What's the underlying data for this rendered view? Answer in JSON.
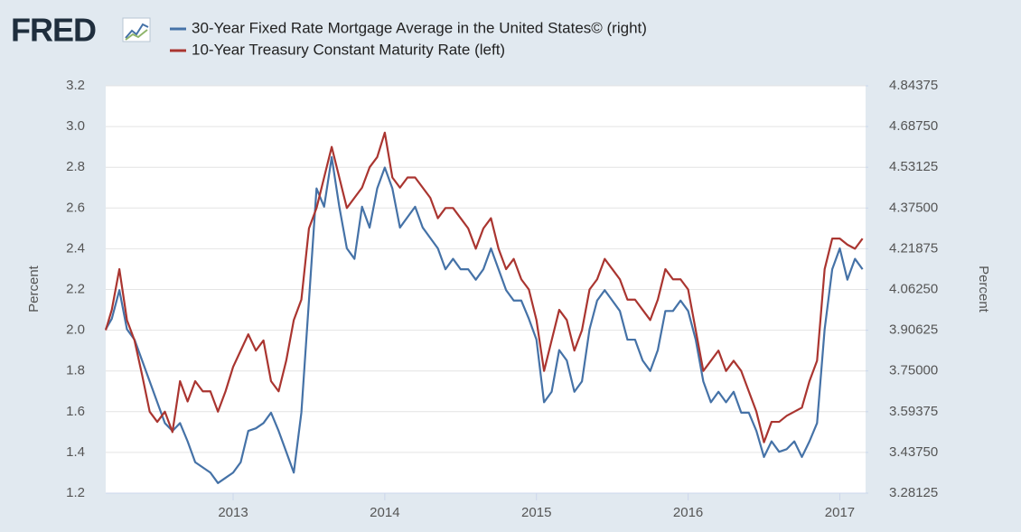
{
  "chart_data": {
    "type": "line",
    "logo": "FRED",
    "yaxis_label": "Percent",
    "y2axis_label": "Percent",
    "grid": true,
    "x": [
      2012.16,
      2012.2,
      2012.25,
      2012.3,
      2012.35,
      2012.4,
      2012.45,
      2012.5,
      2012.55,
      2012.6,
      2012.65,
      2012.7,
      2012.75,
      2012.8,
      2012.85,
      2012.9,
      2012.95,
      2013.0,
      2013.05,
      2013.1,
      2013.15,
      2013.2,
      2013.25,
      2013.3,
      2013.35,
      2013.4,
      2013.45,
      2013.5,
      2013.55,
      2013.6,
      2013.65,
      2013.7,
      2013.75,
      2013.8,
      2013.85,
      2013.9,
      2013.95,
      2014.0,
      2014.05,
      2014.1,
      2014.15,
      2014.2,
      2014.25,
      2014.3,
      2014.35,
      2014.4,
      2014.45,
      2014.5,
      2014.55,
      2014.6,
      2014.65,
      2014.7,
      2014.75,
      2014.8,
      2014.85,
      2014.9,
      2014.95,
      2015.0,
      2015.05,
      2015.1,
      2015.15,
      2015.2,
      2015.25,
      2015.3,
      2015.35,
      2015.4,
      2015.45,
      2015.5,
      2015.55,
      2015.6,
      2015.65,
      2015.7,
      2015.75,
      2015.8,
      2015.85,
      2015.9,
      2015.95,
      2016.0,
      2016.05,
      2016.1,
      2016.15,
      2016.2,
      2016.25,
      2016.3,
      2016.35,
      2016.4,
      2016.45,
      2016.5,
      2016.55,
      2016.6,
      2016.65,
      2016.7,
      2016.75,
      2016.8,
      2016.85,
      2016.9,
      2016.95,
      2017.0,
      2017.05,
      2017.1,
      2017.15
    ],
    "series": [
      {
        "name": "30-Year Fixed Rate Mortgage Average in the United States© (right)",
        "color": "#4572a7",
        "axis": "y2",
        "values": [
          3.91,
          3.95,
          4.06,
          3.91,
          3.87,
          3.79,
          3.71,
          3.63,
          3.55,
          3.52,
          3.55,
          3.48,
          3.4,
          3.38,
          3.36,
          3.32,
          3.34,
          3.36,
          3.4,
          3.52,
          3.53,
          3.55,
          3.59,
          3.52,
          3.44,
          3.36,
          3.59,
          4.02,
          4.45,
          4.38,
          4.57,
          4.38,
          4.22,
          4.18,
          4.38,
          4.3,
          4.45,
          4.53,
          4.45,
          4.3,
          4.34,
          4.38,
          4.3,
          4.26,
          4.22,
          4.14,
          4.18,
          4.14,
          4.14,
          4.1,
          4.14,
          4.22,
          4.14,
          4.06,
          4.02,
          4.02,
          3.95,
          3.87,
          3.63,
          3.67,
          3.83,
          3.79,
          3.67,
          3.71,
          3.91,
          4.02,
          4.06,
          4.02,
          3.98,
          3.87,
          3.87,
          3.79,
          3.75,
          3.83,
          3.98,
          3.98,
          4.02,
          3.98,
          3.87,
          3.71,
          3.63,
          3.67,
          3.63,
          3.67,
          3.59,
          3.59,
          3.52,
          3.42,
          3.48,
          3.44,
          3.45,
          3.48,
          3.42,
          3.48,
          3.55,
          3.91,
          4.14,
          4.22,
          4.1,
          4.18,
          4.14
        ]
      },
      {
        "name": "10-Year Treasury Constant Maturity Rate (left)",
        "color": "#aa3530",
        "axis": "y",
        "values": [
          2.0,
          2.1,
          2.3,
          2.05,
          1.95,
          1.78,
          1.6,
          1.55,
          1.6,
          1.5,
          1.75,
          1.65,
          1.75,
          1.7,
          1.7,
          1.6,
          1.7,
          1.82,
          1.9,
          1.98,
          1.9,
          1.95,
          1.75,
          1.7,
          1.85,
          2.05,
          2.15,
          2.5,
          2.6,
          2.75,
          2.9,
          2.75,
          2.6,
          2.65,
          2.7,
          2.8,
          2.85,
          2.97,
          2.75,
          2.7,
          2.75,
          2.75,
          2.7,
          2.65,
          2.55,
          2.6,
          2.6,
          2.55,
          2.5,
          2.4,
          2.5,
          2.55,
          2.4,
          2.3,
          2.35,
          2.25,
          2.2,
          2.05,
          1.8,
          1.95,
          2.1,
          2.05,
          1.9,
          2.0,
          2.2,
          2.25,
          2.35,
          2.3,
          2.25,
          2.15,
          2.15,
          2.1,
          2.05,
          2.15,
          2.3,
          2.25,
          2.25,
          2.2,
          2.0,
          1.8,
          1.85,
          1.9,
          1.8,
          1.85,
          1.8,
          1.7,
          1.6,
          1.45,
          1.55,
          1.55,
          1.58,
          1.6,
          1.62,
          1.75,
          1.85,
          2.3,
          2.45,
          2.45,
          2.42,
          2.4,
          2.45
        ]
      }
    ],
    "xlim": [
      2012.16,
      2017.17
    ],
    "xticks": [
      2013,
      2014,
      2015,
      2016,
      2017
    ],
    "ylim": [
      1.2,
      3.2
    ],
    "yticks": [
      1.2,
      1.4,
      1.6,
      1.8,
      {
        "value": 2,
        "label": "2.0"
      },
      2.2,
      2.4,
      2.6,
      2.8,
      {
        "value": 3,
        "label": "3.0"
      },
      3.2
    ],
    "y2lim": [
      3.28125,
      4.84375
    ],
    "y2ticks": [
      3.28125,
      {
        "value": 3.4375,
        "label": "3.43750"
      },
      3.59375,
      {
        "value": 3.75,
        "label": "3.75000"
      },
      3.90625,
      {
        "value": 4.0625,
        "label": "4.06250"
      },
      4.21875,
      {
        "value": 4.375,
        "label": "4.37500"
      },
      4.53125,
      {
        "value": 4.6875,
        "label": "4.68750"
      },
      4.84375
    ]
  }
}
